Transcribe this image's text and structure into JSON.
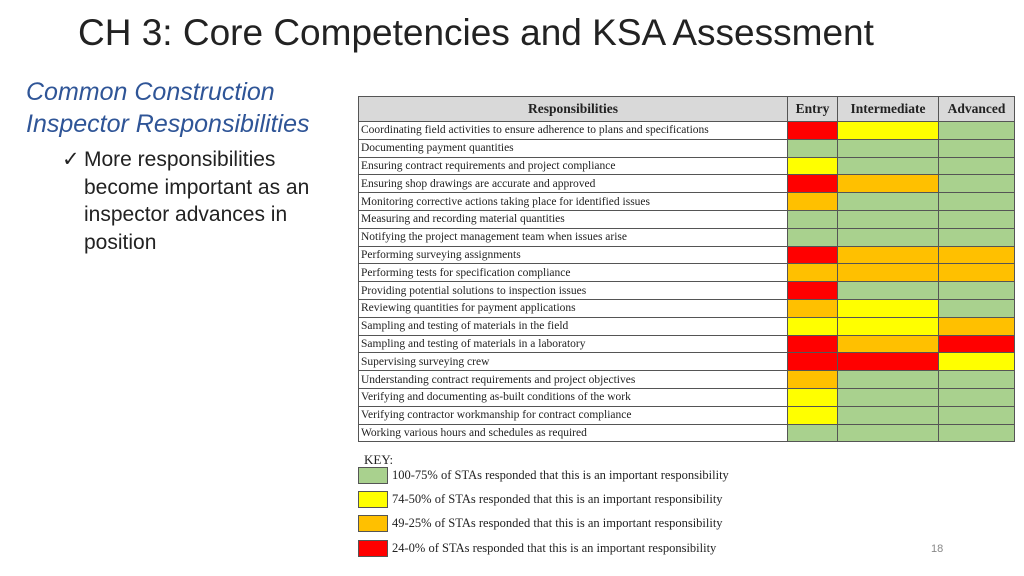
{
  "slide": {
    "title": "CH 3: Core Competencies and KSA Assessment",
    "subtitle": "Common Construction Inspector Responsibilities",
    "bullet_check": "✓",
    "bullet_text": "More responsibilities become important as an inspector advances in position",
    "page_number": "18"
  },
  "colors": {
    "green": "#a9d18e",
    "yellow": "#ffff00",
    "orange": "#ffc000",
    "red": "#ff0000",
    "header": "#d9d9d9",
    "subtitle": "#2f5597"
  },
  "table": {
    "headers": [
      "Responsibilities",
      "Entry",
      "Intermediate",
      "Advanced"
    ],
    "rows": [
      {
        "label": "Coordinating field activities to ensure adherence to plans and specifications",
        "levels": [
          "red",
          "yellow",
          "green"
        ]
      },
      {
        "label": "Documenting payment quantities",
        "levels": [
          "green",
          "green",
          "green"
        ]
      },
      {
        "label": "Ensuring contract requirements and project compliance",
        "levels": [
          "yellow",
          "green",
          "green"
        ]
      },
      {
        "label": "Ensuring shop drawings are accurate and approved",
        "levels": [
          "red",
          "orange",
          "green"
        ]
      },
      {
        "label": "Monitoring corrective actions taking place for identified issues",
        "levels": [
          "orange",
          "green",
          "green"
        ]
      },
      {
        "label": "Measuring and recording material quantities",
        "levels": [
          "green",
          "green",
          "green"
        ]
      },
      {
        "label": "Notifying the project management team when issues arise",
        "levels": [
          "green",
          "green",
          "green"
        ]
      },
      {
        "label": "Performing surveying assignments",
        "levels": [
          "red",
          "orange",
          "orange"
        ]
      },
      {
        "label": "Performing tests for specification compliance",
        "levels": [
          "orange",
          "orange",
          "orange"
        ]
      },
      {
        "label": "Providing potential solutions to inspection issues",
        "levels": [
          "red",
          "green",
          "green"
        ]
      },
      {
        "label": "Reviewing quantities for payment applications",
        "levels": [
          "orange",
          "yellow",
          "green"
        ]
      },
      {
        "label": "Sampling and testing of materials in the field",
        "levels": [
          "yellow",
          "yellow",
          "orange"
        ]
      },
      {
        "label": "Sampling and testing of materials in a laboratory",
        "levels": [
          "red",
          "orange",
          "red"
        ]
      },
      {
        "label": "Supervising surveying crew",
        "levels": [
          "red",
          "red",
          "yellow"
        ]
      },
      {
        "label": "Understanding contract requirements and project objectives",
        "levels": [
          "orange",
          "green",
          "green"
        ]
      },
      {
        "label": "Verifying and documenting as-built conditions of the work",
        "levels": [
          "yellow",
          "green",
          "green"
        ]
      },
      {
        "label": "Verifying contractor workmanship for contract compliance",
        "levels": [
          "yellow",
          "green",
          "green"
        ]
      },
      {
        "label": "Working various hours and schedules as required",
        "levels": [
          "green",
          "green",
          "green"
        ]
      }
    ]
  },
  "key": {
    "label": "KEY:",
    "items": [
      {
        "color": "green",
        "text": "100-75% of STAs responded that this is an important responsibility"
      },
      {
        "color": "yellow",
        "text": "74-50% of STAs responded that this is an important responsibility"
      },
      {
        "color": "orange",
        "text": "49-25% of STAs responded that this is an important responsibility"
      },
      {
        "color": "red",
        "text": "24-0% of STAs responded that this is an important responsibility"
      }
    ]
  }
}
